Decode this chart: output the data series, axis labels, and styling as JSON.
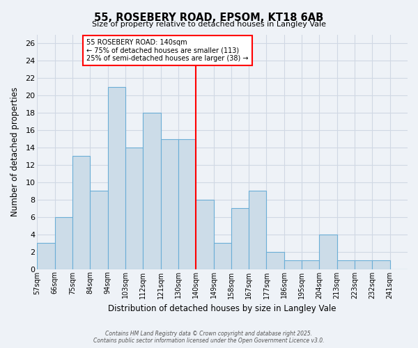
{
  "title": "55, ROSEBERY ROAD, EPSOM, KT18 6AB",
  "subtitle": "Size of property relative to detached houses in Langley Vale",
  "xlabel": "Distribution of detached houses by size in Langley Vale",
  "ylabel": "Number of detached properties",
  "bin_labels": [
    "57sqm",
    "66sqm",
    "75sqm",
    "84sqm",
    "94sqm",
    "103sqm",
    "112sqm",
    "121sqm",
    "130sqm",
    "140sqm",
    "149sqm",
    "158sqm",
    "167sqm",
    "177sqm",
    "186sqm",
    "195sqm",
    "204sqm",
    "213sqm",
    "223sqm",
    "232sqm",
    "241sqm"
  ],
  "bin_edges_numeric": [
    0,
    1,
    2,
    3,
    4,
    5,
    6,
    7,
    8,
    9,
    10,
    11,
    12,
    13,
    14,
    15,
    16,
    17,
    18,
    19,
    20
  ],
  "counts": [
    3,
    6,
    13,
    9,
    21,
    14,
    18,
    15,
    15,
    8,
    3,
    7,
    9,
    2,
    1,
    1,
    4,
    1,
    1,
    1,
    0
  ],
  "bar_color": "#ccdce8",
  "bar_edgecolor": "#6baed6",
  "redline_bin": 9,
  "annotation_line1": "55 ROSEBERY ROAD: 140sqm",
  "annotation_line2": "← 75% of detached houses are smaller (113)",
  "annotation_line3": "25% of semi-detached houses are larger (38) →",
  "ylim": [
    0,
    27
  ],
  "yticks": [
    0,
    2,
    4,
    6,
    8,
    10,
    12,
    14,
    16,
    18,
    20,
    22,
    24,
    26
  ],
  "background_color": "#eef2f7",
  "grid_color": "#d0d8e4",
  "footer1": "Contains HM Land Registry data © Crown copyright and database right 2025.",
  "footer2": "Contains public sector information licensed under the Open Government Licence v3.0."
}
